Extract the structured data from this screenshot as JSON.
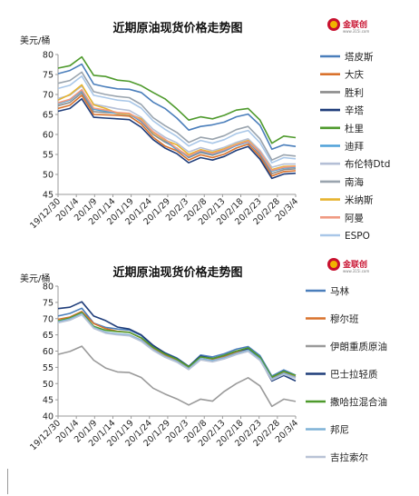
{
  "chart_data": [
    {
      "type": "line",
      "title": "近期原油现货价格走势图",
      "ylabel": "美元/桶",
      "ylim": [
        45,
        80
      ],
      "yticks": [
        45,
        50,
        55,
        60,
        65,
        70,
        75,
        80
      ],
      "xticks": [
        "19/12/30",
        "20/1/4",
        "20/1/9",
        "20/1/14",
        "20/1/19",
        "20/1/24",
        "20/1/29",
        "20/2/3",
        "20/2/8",
        "20/2/13",
        "20/2/18",
        "20/2/23",
        "20/2/28",
        "20/3/4"
      ],
      "x": [
        "19/12/30",
        "20/1/2",
        "20/1/6",
        "20/1/8",
        "20/1/10",
        "20/1/14",
        "20/1/17",
        "20/1/21",
        "20/1/24",
        "20/1/28",
        "20/1/31",
        "20/2/4",
        "20/2/6",
        "20/2/10",
        "20/2/13",
        "20/2/17",
        "20/2/20",
        "20/2/24",
        "20/2/27",
        "20/3/2",
        "20/3/4"
      ],
      "series": [
        {
          "name": "塔皮斯",
          "color": "#4a7ebb",
          "values": [
            75.2,
            76.0,
            77.6,
            72.6,
            71.9,
            71.4,
            71.3,
            70.5,
            68.1,
            66.5,
            64.1,
            61.1,
            62.0,
            62.4,
            63.1,
            64.4,
            65.1,
            62.3,
            56.3,
            57.4,
            57.0
          ]
        },
        {
          "name": "大庆",
          "color": "#d9722c",
          "values": [
            66.5,
            67.3,
            69.8,
            65.0,
            64.9,
            64.8,
            64.6,
            62.6,
            59.3,
            57.1,
            55.9,
            53.6,
            54.9,
            54.2,
            55.1,
            56.6,
            57.6,
            54.4,
            49.6,
            50.7,
            50.9
          ]
        },
        {
          "name": "胜利",
          "color": "#8c8c8c",
          "values": [
            67.2,
            68.0,
            70.4,
            65.7,
            65.5,
            65.4,
            65.2,
            63.2,
            60.0,
            58.1,
            56.6,
            54.2,
            55.5,
            54.8,
            55.8,
            57.3,
            58.2,
            55.0,
            50.2,
            51.2,
            51.4
          ]
        },
        {
          "name": "辛塔",
          "color": "#1f3d7a",
          "values": [
            65.8,
            66.5,
            68.9,
            64.3,
            64.1,
            63.9,
            63.7,
            61.8,
            58.7,
            56.6,
            55.2,
            52.9,
            54.2,
            53.6,
            54.5,
            56.0,
            57.0,
            53.8,
            49.0,
            50.1,
            50.3
          ]
        },
        {
          "name": "杜里",
          "color": "#4e9a2c",
          "values": [
            76.6,
            77.2,
            79.4,
            74.8,
            74.5,
            73.6,
            73.3,
            72.2,
            70.5,
            68.9,
            66.4,
            63.6,
            64.4,
            63.9,
            64.8,
            66.1,
            66.5,
            63.6,
            57.8,
            59.6,
            59.2
          ]
        },
        {
          "name": "迪拜",
          "color": "#4fa1d8",
          "values": [
            67.7,
            68.6,
            70.9,
            66.3,
            65.8,
            65.2,
            65.0,
            63.4,
            60.6,
            58.5,
            56.2,
            54.4,
            55.8,
            55.0,
            56.0,
            57.2,
            58.1,
            55.4,
            50.8,
            51.6,
            51.8
          ]
        },
        {
          "name": "布伦特Dtd",
          "color": "#b4bfd6",
          "values": [
            69.0,
            69.8,
            72.1,
            67.6,
            67.0,
            66.4,
            66.0,
            64.3,
            61.3,
            59.3,
            57.9,
            55.6,
            56.7,
            55.9,
            56.8,
            58.0,
            58.9,
            56.0,
            51.8,
            52.6,
            52.6
          ]
        },
        {
          "name": "南海",
          "color": "#9aa4ae",
          "values": [
            72.8,
            73.5,
            75.6,
            70.7,
            70.0,
            69.5,
            69.2,
            67.5,
            64.2,
            62.2,
            60.5,
            58.0,
            59.3,
            58.8,
            59.7,
            61.2,
            62.0,
            58.9,
            53.6,
            54.9,
            54.6
          ]
        },
        {
          "name": "米纳斯",
          "color": "#e6b32e",
          "values": [
            68.6,
            70.0,
            72.4,
            67.4,
            66.5,
            65.3,
            65.1,
            63.9,
            60.5,
            58.6,
            57.4,
            55.0,
            56.2,
            55.5,
            56.4,
            57.6,
            58.5,
            55.6,
            51.2,
            52.0,
            52.1
          ]
        },
        {
          "name": "阿曼",
          "color": "#f09a82",
          "values": [
            67.9,
            68.8,
            71.2,
            66.6,
            66.1,
            65.5,
            65.3,
            63.6,
            60.7,
            58.8,
            56.5,
            54.6,
            56.0,
            55.2,
            56.2,
            57.4,
            58.3,
            55.6,
            51.0,
            51.8,
            52.0
          ]
        },
        {
          "name": "ESPO",
          "color": "#a9c7e8",
          "values": [
            71.5,
            72.3,
            74.6,
            69.8,
            69.2,
            68.6,
            68.3,
            66.6,
            63.4,
            61.3,
            59.5,
            57.1,
            58.5,
            57.8,
            58.7,
            60.2,
            61.0,
            57.9,
            52.9,
            54.2,
            53.9
          ]
        }
      ],
      "legend": "right"
    },
    {
      "type": "line",
      "title": "近期原油现货价格走势图",
      "ylabel": "美元/桶",
      "ylim": [
        40,
        80
      ],
      "yticks": [
        40,
        45,
        50,
        55,
        60,
        65,
        70,
        75,
        80
      ],
      "xticks": [
        "19/12/30",
        "20/1/4",
        "20/1/9",
        "20/1/14",
        "20/1/19",
        "20/1/24",
        "20/1/29",
        "20/2/3",
        "20/2/8",
        "20/2/13",
        "20/2/18",
        "20/2/23",
        "20/2/28",
        "20/3/4"
      ],
      "x": [
        "19/12/30",
        "20/1/2",
        "20/1/6",
        "20/1/8",
        "20/1/10",
        "20/1/14",
        "20/1/17",
        "20/1/21",
        "20/1/24",
        "20/1/28",
        "20/1/31",
        "20/2/4",
        "20/2/6",
        "20/2/10",
        "20/2/13",
        "20/2/17",
        "20/2/20",
        "20/2/24",
        "20/2/27",
        "20/3/2",
        "20/3/4"
      ],
      "series": [
        {
          "name": "马林",
          "color": "#4a7ebb",
          "values": [
            70.8,
            71.6,
            73.2,
            68.6,
            67.3,
            66.8,
            66.5,
            64.8,
            61.5,
            59.5,
            57.9,
            55.3,
            58.8,
            58.2,
            59.2,
            60.6,
            61.4,
            58.6,
            52.3,
            54.2,
            52.6
          ]
        },
        {
          "name": "穆尔班",
          "color": "#d9722c",
          "values": [
            69.8,
            70.5,
            72.2,
            68.5,
            66.9,
            66.1,
            65.8,
            64.0,
            60.9,
            58.8,
            57.3,
            54.8,
            58.2,
            57.5,
            58.4,
            59.6,
            60.5,
            57.8,
            51.6,
            53.5,
            52.0
          ]
        },
        {
          "name": "伊朗重质原油",
          "color": "#9a9a9a",
          "values": [
            59.0,
            59.9,
            61.5,
            57.2,
            54.8,
            53.6,
            53.4,
            51.9,
            48.6,
            46.8,
            45.3,
            43.4,
            45.2,
            44.6,
            47.6,
            50.0,
            51.8,
            49.3,
            43.0,
            45.2,
            44.5
          ]
        },
        {
          "name": "巴士拉轻质",
          "color": "#1f3d7a",
          "values": [
            73.1,
            73.5,
            75.2,
            70.8,
            69.4,
            67.4,
            66.8,
            65.0,
            61.8,
            59.4,
            57.7,
            55.3,
            58.5,
            57.7,
            58.7,
            60.0,
            60.7,
            57.4,
            50.8,
            52.5,
            50.8
          ]
        },
        {
          "name": "撒哈拉混合油",
          "color": "#4e9a2c",
          "values": [
            69.3,
            70.2,
            71.9,
            67.6,
            66.4,
            66.0,
            65.8,
            64.1,
            61.2,
            59.1,
            57.5,
            55.2,
            58.2,
            57.7,
            58.7,
            60.0,
            61.0,
            58.1,
            52.0,
            53.8,
            52.5
          ]
        },
        {
          "name": "邦尼",
          "color": "#7fb2d6",
          "values": [
            69.0,
            69.9,
            71.5,
            67.3,
            65.8,
            65.3,
            65.0,
            63.4,
            60.5,
            58.4,
            56.9,
            54.6,
            57.7,
            57.1,
            58.0,
            59.3,
            60.3,
            57.5,
            51.4,
            53.2,
            51.9
          ]
        },
        {
          "name": "吉拉索尔",
          "color": "#b9c3d6",
          "values": [
            68.7,
            69.5,
            71.2,
            67.0,
            65.5,
            65.0,
            64.7,
            63.0,
            60.2,
            58.1,
            56.6,
            54.3,
            57.3,
            56.7,
            57.6,
            58.9,
            59.9,
            57.1,
            51.1,
            52.8,
            51.6
          ]
        }
      ],
      "legend": "right"
    }
  ],
  "logo": {
    "text": "金联创",
    "sub": "www.315i.com"
  }
}
